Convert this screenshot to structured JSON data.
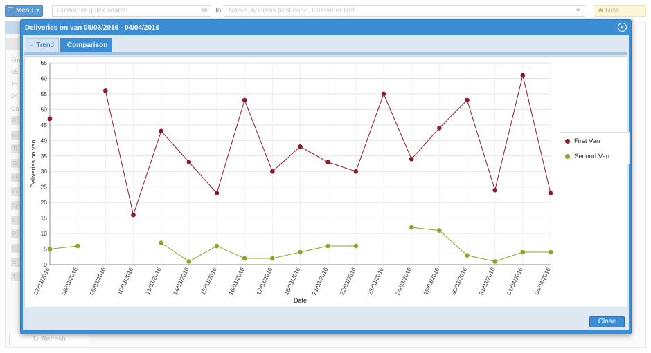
{
  "topbar": {
    "menu_label": "Menu",
    "search_placeholder": "Customer quick search",
    "in_label": "In:",
    "in_placeholder": "Name, Address post code, Customer Ref",
    "new_customer_label": "New customer"
  },
  "background": {
    "field_stubs": [
      "B",
      "C",
      "Ti",
      "G",
      "I F",
      "In",
      "Ly",
      "L",
      "P",
      "C",
      "S",
      "T"
    ],
    "labels": [
      "Fro",
      "05",
      "To",
      "04",
      "Co"
    ],
    "refresh_label": "Refresh"
  },
  "modal": {
    "title": "Deliveries on van 05/03/2016 - 04/04/2016",
    "tabs": [
      {
        "label": "Trend",
        "icon": "line-chart-icon",
        "active": false
      },
      {
        "label": "Comparison",
        "icon": "pie-chart-icon",
        "active": true
      }
    ],
    "close_label": "Close"
  },
  "chart_data": {
    "type": "line",
    "xlabel": "Date",
    "ylabel": "Deliveries on van",
    "ylim": [
      0,
      65
    ],
    "yticks": [
      0,
      5,
      10,
      15,
      20,
      25,
      30,
      35,
      40,
      45,
      50,
      55,
      60,
      65
    ],
    "grid": true,
    "legend_position": "right",
    "categories": [
      "07/03/2016",
      "08/03/2016",
      "09/03/2016",
      "10/03/2016",
      "11/03/2016",
      "14/03/2016",
      "15/03/2016",
      "16/03/2016",
      "17/03/2016",
      "18/03/2016",
      "21/03/2016",
      "22/03/2016",
      "23/03/2016",
      "24/03/2016",
      "29/03/2016",
      "30/03/2016",
      "31/03/2016",
      "01/04/2016",
      "04/04/2016"
    ],
    "series": [
      {
        "name": "First Van",
        "color": "#8b1a2b",
        "values": [
          47,
          null,
          56,
          16,
          43,
          33,
          23,
          53,
          30,
          38,
          33,
          30,
          55,
          34,
          44,
          53,
          24,
          61,
          23
        ]
      },
      {
        "name": "Second Van",
        "color": "#8aa62a",
        "values": [
          5,
          6,
          null,
          null,
          7,
          1,
          6,
          2,
          2,
          4,
          6,
          6,
          null,
          12,
          11,
          3,
          1,
          4,
          4
        ]
      }
    ]
  }
}
